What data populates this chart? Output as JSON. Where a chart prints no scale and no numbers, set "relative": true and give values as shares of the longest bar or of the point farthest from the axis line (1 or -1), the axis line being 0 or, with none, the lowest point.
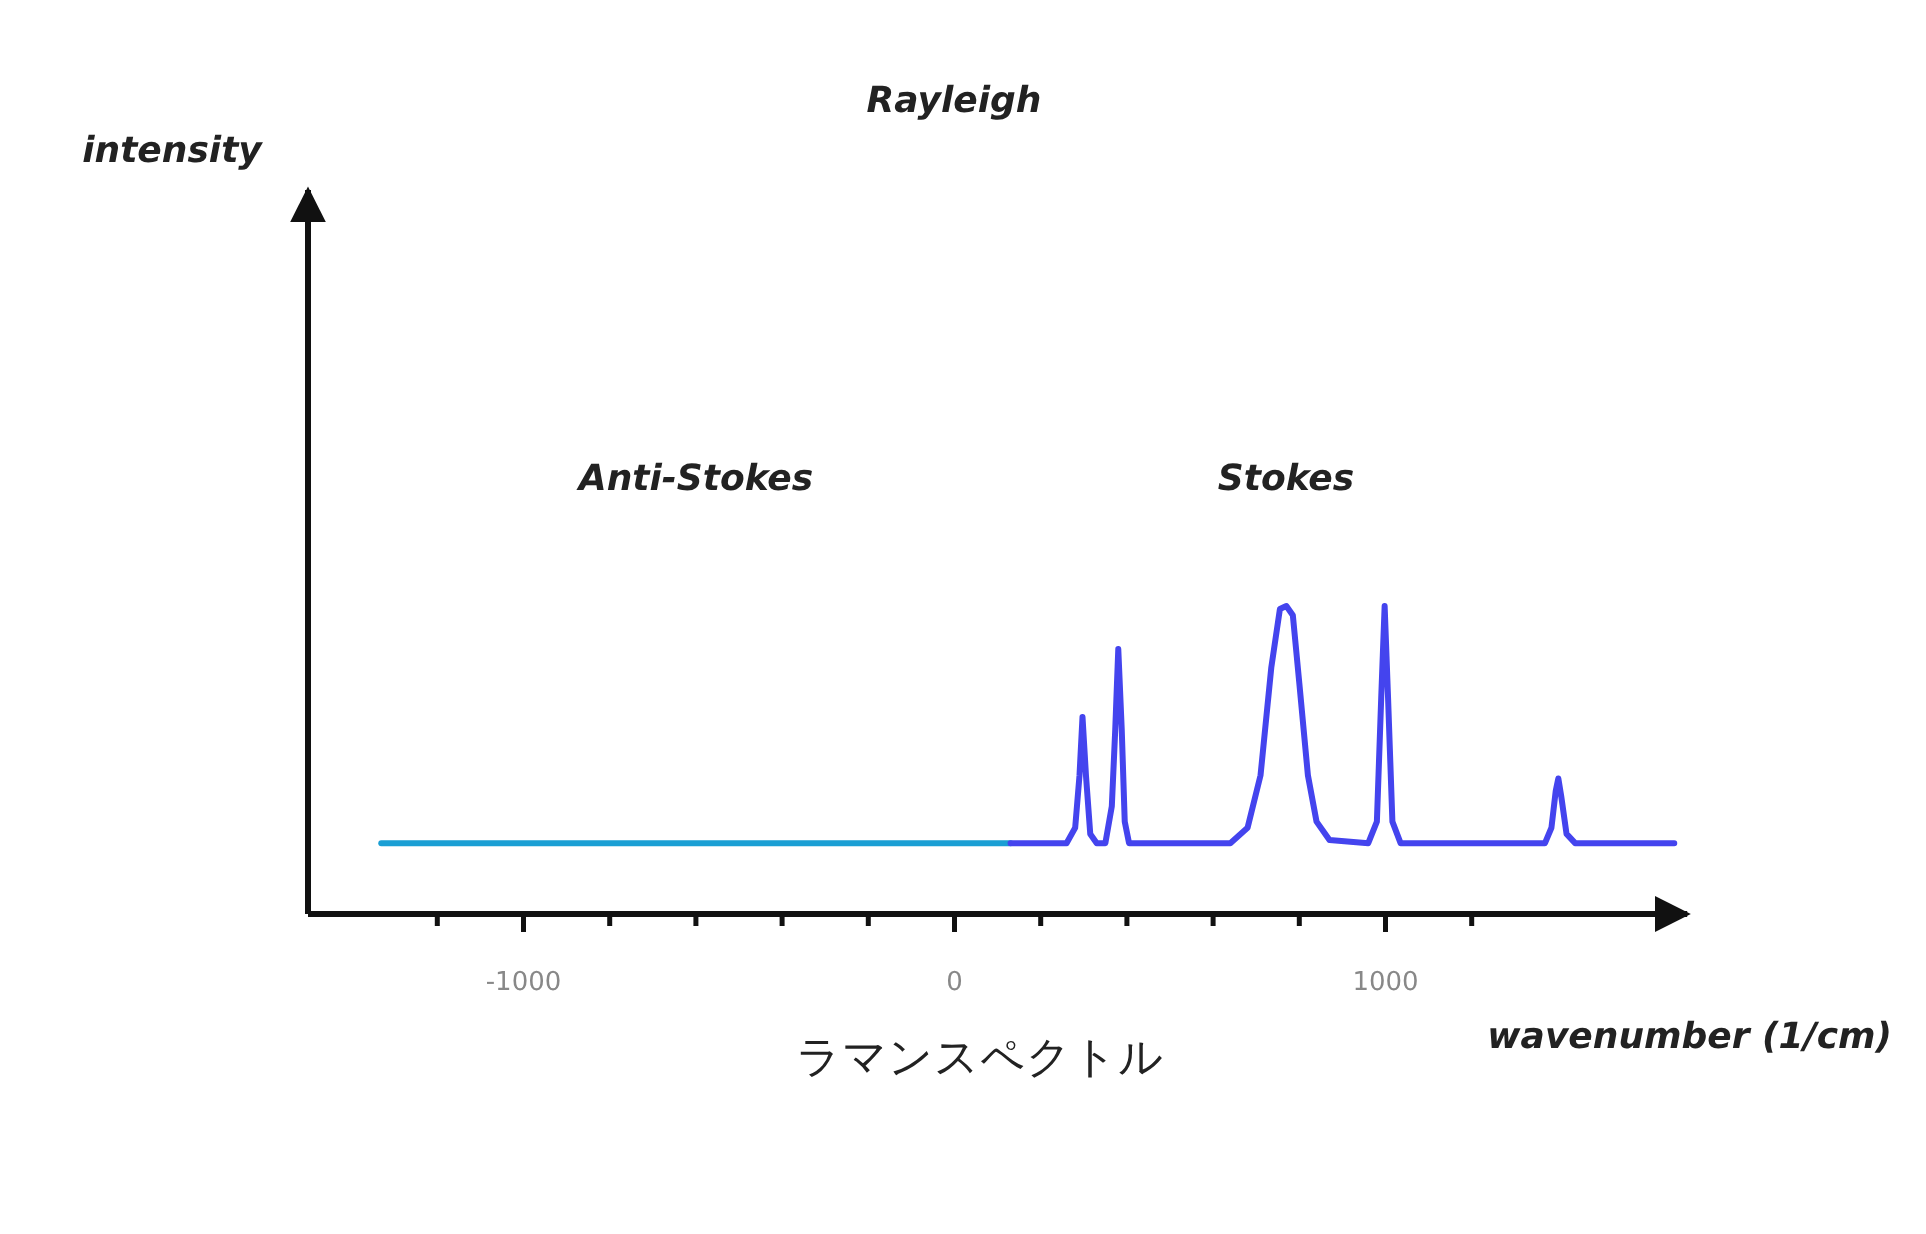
{
  "chart_data": {
    "type": "line",
    "title": "ラマンスペクトル",
    "xlabel": "wavenumber (1/cm)",
    "relative": true,
    "annotations": [
      "Rayleigh",
      "Anti-Stokes",
      "Stokes",
      "intensity"
    ],
    "xlim": [
      -1500,
      1700
    ],
    "xticks": [
      {
        "value": -1200,
        "label": null
      },
      -1000,
      {
        "value": -800,
        "label": null
      },
      {
        "value": -600,
        "label": null
      },
      {
        "value": -400,
        "label": null
      },
      {
        "value": -200,
        "label": null
      },
      0,
      {
        "value": 200,
        "label": null
      },
      {
        "value": 400,
        "label": null
      },
      {
        "value": 600,
        "label": null
      },
      {
        "value": 800,
        "label": null
      },
      1000,
      {
        "value": 1200,
        "label": null
      }
    ],
    "series": [
      {
        "color": "#1a9fd4",
        "x": [
          -1330,
          130
        ],
        "values": [
          0.23,
          0.23
        ]
      },
      {
        "color": "#4444ee",
        "x": [
          130,
          260,
          280,
          290,
          297,
          305,
          315,
          330,
          350,
          365,
          373,
          380,
          388,
          395,
          405,
          640,
          680,
          710,
          735,
          755,
          770,
          785,
          800,
          820,
          840,
          870,
          960,
          980,
          990,
          998,
          1006,
          1016,
          1035,
          1370,
          1385,
          1395,
          1401,
          1408,
          1420,
          1440,
          1670
        ],
        "values": [
          0.23,
          0.23,
          0.28,
          0.45,
          0.64,
          0.45,
          0.26,
          0.23,
          0.23,
          0.35,
          0.6,
          0.86,
          0.6,
          0.3,
          0.23,
          0.23,
          0.28,
          0.45,
          0.8,
          0.99,
          1.0,
          0.97,
          0.75,
          0.45,
          0.3,
          0.24,
          0.23,
          0.3,
          0.7,
          1.0,
          0.7,
          0.3,
          0.23,
          0.23,
          0.28,
          0.4,
          0.44,
          0.38,
          0.26,
          0.23,
          0.23
        ]
      }
    ]
  }
}
